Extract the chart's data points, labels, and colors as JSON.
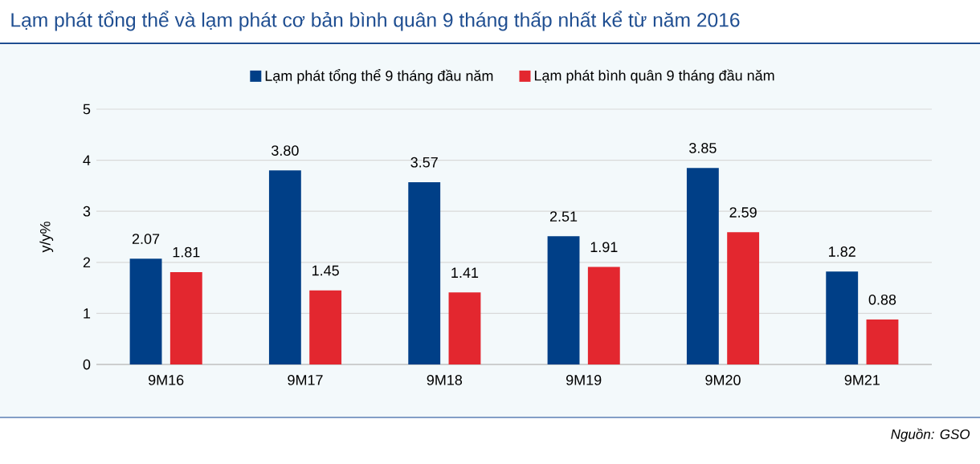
{
  "chart_data": {
    "type": "bar",
    "title": "Lạm phát tổng thể và lạm phát cơ bản bình quân 9 tháng thấp nhất kể từ năm 2016",
    "ylabel": "y/y%",
    "categories": [
      "9M16",
      "9M17",
      "9M18",
      "9M19",
      "9M20",
      "9M21"
    ],
    "series": [
      {
        "name": "Lạm phát tổng thể 9 tháng đầu năm",
        "color": "#003f87",
        "values": [
          2.07,
          3.8,
          3.57,
          2.51,
          3.85,
          1.82
        ],
        "value_labels": [
          "2.07",
          "3.80",
          "3.57",
          "2.51",
          "3.85",
          "1.82"
        ]
      },
      {
        "name": "Lạm phát bình quân 9 tháng đầu năm",
        "color": "#e3272f",
        "values": [
          1.81,
          1.45,
          1.41,
          1.91,
          2.59,
          0.88
        ],
        "value_labels": [
          "1.81",
          "1.45",
          "1.41",
          "1.91",
          "2.59",
          "0.88"
        ]
      }
    ],
    "ylim": [
      0,
      5
    ],
    "yticks": [
      0,
      1,
      2,
      3,
      4,
      5
    ],
    "grid": "y",
    "legend": "top",
    "annotations": [
      "Nguồn: GSO"
    ]
  }
}
